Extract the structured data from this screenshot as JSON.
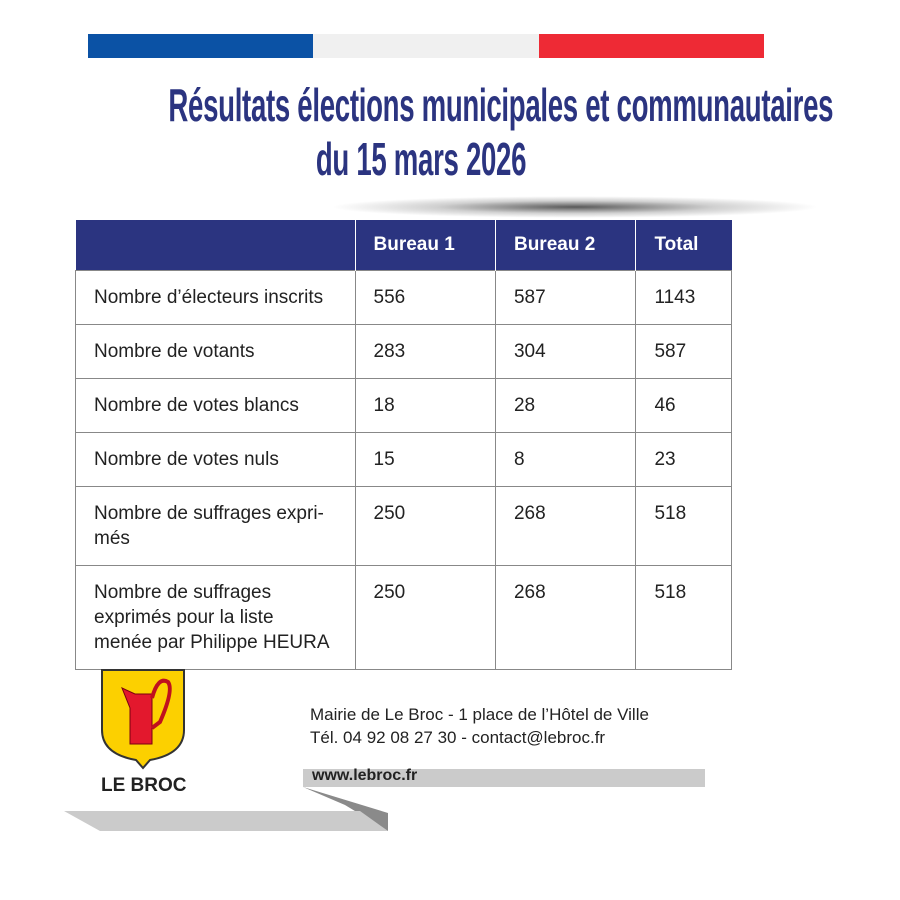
{
  "flag_colors": [
    "#0b52a5",
    "#f0f0f0",
    "#ee2a35"
  ],
  "title_line1": "Résultats élections municipales et communautaires",
  "title_line2": "du 15 mars 2026",
  "table": {
    "headers": [
      "",
      "Bureau 1",
      "Bureau 2",
      "Total"
    ],
    "rows": [
      [
        "Nombre d’électeurs inscrits",
        "556",
        "587",
        "1143"
      ],
      [
        "Nombre de votants",
        "283",
        "304",
        "587"
      ],
      [
        "Nombre de votes blancs",
        "18",
        "28",
        "46"
      ],
      [
        "Nombre de votes nuls",
        "15",
        "8",
        "23"
      ],
      [
        "Nombre de suffrages expri-\nmés",
        "250",
        "268",
        "518"
      ],
      [
        "Nombre de suffrages\nexprimés pour la liste\nmenée par Philippe HEURA",
        "250",
        "268",
        "518"
      ]
    ]
  },
  "footer": {
    "town": "LE BROC",
    "address": "Mairie de Le Broc - 1 place de l’Hôtel de Ville",
    "contact": "Tél. 04 92 08 27 30 - contact@lebroc.fr",
    "website": "www.lebroc.fr"
  }
}
